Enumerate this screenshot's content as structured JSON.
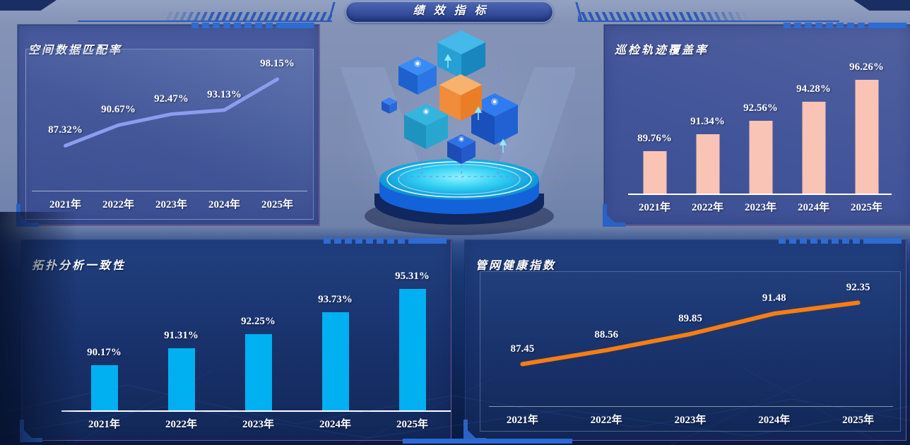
{
  "header": {
    "title": "绩效指标"
  },
  "chart_data": [
    {
      "id": "spatial-data-match-rate",
      "type": "line",
      "title": "空间数据匹配率",
      "categories": [
        "2021年",
        "2022年",
        "2023年",
        "2024年",
        "2025年"
      ],
      "values": [
        87.32,
        90.67,
        92.47,
        93.13,
        98.15
      ],
      "labels": [
        "87.32%",
        "90.67%",
        "92.47%",
        "93.13%",
        "98.15%"
      ],
      "color": "#8d9cf0",
      "ylim": [
        80,
        103
      ],
      "grid": false,
      "legend": "none"
    },
    {
      "id": "patrol-track-coverage-rate",
      "type": "bar",
      "title": "巡检轨迹覆盖率",
      "categories": [
        "2021年",
        "2022年",
        "2023年",
        "2024年",
        "2025年"
      ],
      "values": [
        89.76,
        91.34,
        92.56,
        94.28,
        96.26
      ],
      "labels": [
        "89.76%",
        "91.34%",
        "92.56%",
        "94.28%",
        "96.26%"
      ],
      "color": "#f9c3b6",
      "ylim": [
        85.9,
        99
      ],
      "grid": false,
      "legend": "none"
    },
    {
      "id": "topology-analysis-consistency",
      "type": "bar",
      "title": "拓扑分析一致性",
      "categories": [
        "2021年",
        "2022年",
        "2023年",
        "2024年",
        "2025年"
      ],
      "values": [
        90.17,
        91.31,
        92.25,
        93.73,
        95.31
      ],
      "labels": [
        "90.17%",
        "91.31%",
        "92.25%",
        "93.73%",
        "95.31%"
      ],
      "color": "#00b0f0",
      "ylim": [
        87.1,
        95.8
      ],
      "grid": false,
      "legend": "none"
    },
    {
      "id": "pipe-network-health-index",
      "type": "line",
      "title": "管网健康指数",
      "categories": [
        "2021年",
        "2022年",
        "2023年",
        "2024年",
        "2025年"
      ],
      "values": [
        87.45,
        88.56,
        89.85,
        91.48,
        92.35
      ],
      "labels": [
        "87.45",
        "88.56",
        "89.85",
        "91.48",
        "92.35"
      ],
      "color": "#f87d12",
      "ylim": [
        84.1,
        94.8
      ],
      "grid": false,
      "legend": "none"
    }
  ]
}
